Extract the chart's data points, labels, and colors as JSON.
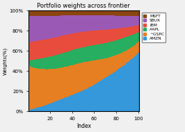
{
  "title": "Portfolio weights across frontier",
  "xlabel": "Index",
  "ylabel": "Weights(%)",
  "n_points": 100,
  "assets": [
    "AMZN",
    "^GSPC",
    "AAPL",
    "IBM",
    "SBUX",
    "MSFT"
  ],
  "colors": [
    "#3498DB",
    "#E67E22",
    "#27AE60",
    "#E74C3C",
    "#9B59B6",
    "#8B4513"
  ],
  "yticks": [
    0.0,
    0.2,
    0.4,
    0.6,
    0.8,
    1.0
  ],
  "ytick_labels": [
    "0%",
    "20%",
    "40%",
    "60%",
    "80%",
    "100%"
  ],
  "xticks": [
    20,
    40,
    60,
    80,
    100
  ],
  "legend_assets": [
    "MSFT",
    "SBUX",
    "IBM",
    "AAPL",
    "^GSPC",
    "AMZN"
  ],
  "legend_colors": [
    "#8B4513",
    "#9B59B6",
    "#E74C3C",
    "#27AE60",
    "#E67E22",
    "#3498DB"
  ],
  "background_color": "#f0f0f0"
}
